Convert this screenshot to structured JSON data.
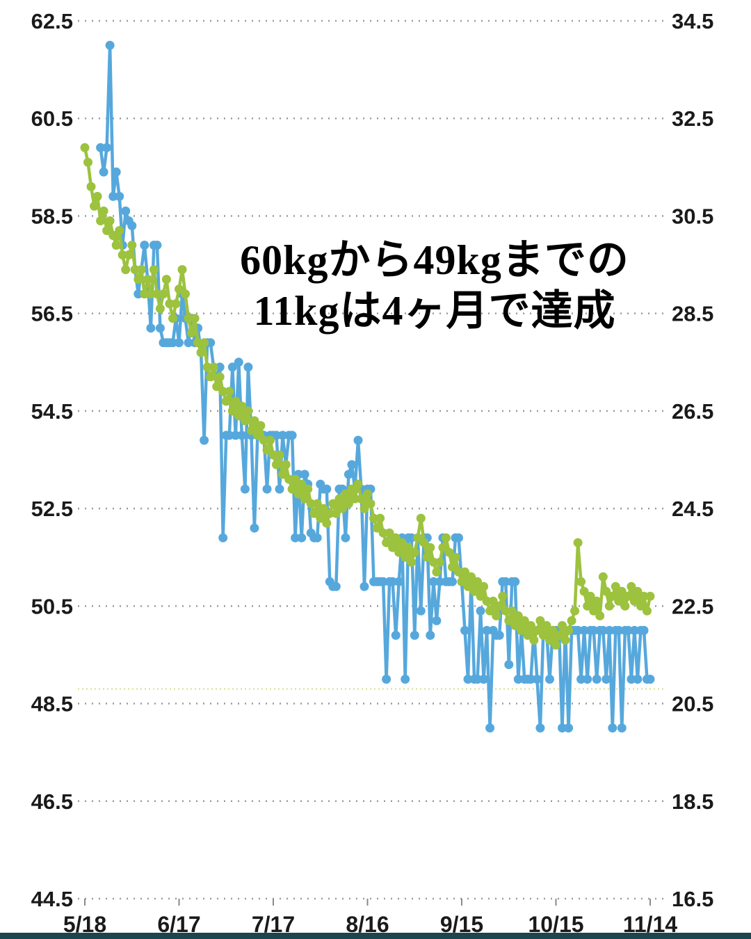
{
  "chart_data": {
    "type": "line",
    "title": "",
    "annotation": {
      "line1": "60kgから49kgまでの",
      "line2": "11kgは4ヶ月で達成"
    },
    "x_axis": {
      "tick_labels": [
        "5/18",
        "6/17",
        "7/17",
        "8/16",
        "9/15",
        "10/15",
        "11/14"
      ],
      "tick_days": [
        0,
        30,
        60,
        90,
        120,
        150,
        180
      ],
      "total_days": 180
    },
    "y_axis_left": {
      "min": 44.5,
      "max": 62.5,
      "tick_step": 2,
      "tick_labels": [
        "62.5",
        "60.5",
        "58.5",
        "56.5",
        "54.5",
        "52.5",
        "50.5",
        "48.5",
        "46.5",
        "44.5"
      ]
    },
    "y_axis_right": {
      "min": 16.5,
      "max": 34.5,
      "tick_step": 2,
      "tick_labels": [
        "34.5",
        "32.5",
        "30.5",
        "28.5",
        "26.5",
        "24.5",
        "22.5",
        "20.5",
        "18.5",
        "16.5"
      ]
    },
    "grid": {
      "color": "#9a9a9a",
      "dash": "2,8",
      "label_color": "#1a1a1a"
    },
    "goal_line": {
      "value_left_axis": 48.8,
      "color": "#e4e6b0"
    },
    "series": [
      {
        "name": "blue-weight-series",
        "axis": "left",
        "color": "#56a8dc",
        "start_day": 5,
        "values": [
          59.9,
          59.4,
          59.9,
          62.0,
          58.9,
          59.4,
          58.9,
          57.9,
          58.6,
          58.4,
          58.3,
          57.4,
          56.9,
          57.4,
          57.9,
          57.2,
          56.2,
          57.9,
          57.9,
          56.2,
          55.9,
          55.9,
          55.9,
          55.9,
          56.4,
          55.9,
          56.9,
          56.4,
          55.9,
          56.4,
          55.9,
          56.2,
          55.7,
          53.9,
          55.9,
          55.9,
          55.4,
          55.2,
          55.4,
          51.9,
          54.0,
          54.0,
          55.4,
          54.0,
          55.5,
          54.0,
          52.9,
          55.4,
          54.0,
          52.1,
          54.0,
          54.0,
          54.0,
          52.9,
          54.0,
          54.0,
          54.0,
          52.9,
          54.0,
          53.4,
          54.0,
          54.0,
          51.9,
          53.2,
          51.9,
          53.2,
          53.0,
          52.0,
          51.9,
          51.9,
          53.0,
          52.9,
          52.9,
          51.0,
          50.9,
          50.9,
          52.9,
          52.9,
          51.9,
          53.2,
          53.4,
          52.9,
          53.9,
          52.9,
          50.9,
          52.9,
          52.9,
          51.0,
          51.0,
          51.0,
          51.0,
          49.0,
          51.0,
          51.0,
          49.9,
          51.0,
          51.9,
          49.0,
          51.9,
          51.9,
          49.9,
          51.9,
          50.4,
          51.9,
          51.9,
          49.9,
          51.0,
          50.2,
          51.0,
          51.9,
          51.0,
          51.0,
          51.0,
          51.9,
          51.9,
          51.0,
          50.0,
          49.0,
          51.0,
          49.0,
          49.0,
          50.4,
          49.0,
          50.0,
          48.0,
          50.0,
          49.9,
          49.9,
          51.0,
          51.0,
          49.3,
          51.0,
          51.0,
          49.0,
          50.0,
          49.0,
          49.0,
          49.0,
          50.0,
          49.0,
          48.0,
          50.0,
          50.0,
          49.0,
          50.0,
          50.0,
          50.0,
          48.0,
          50.0,
          48.0,
          50.0,
          50.0,
          50.0,
          49.0,
          50.0,
          49.0,
          50.0,
          50.0,
          49.0,
          50.0,
          50.0,
          49.0,
          50.0,
          48.0,
          50.0,
          50.0,
          48.0,
          50.0,
          50.0,
          49.0,
          50.0,
          49.0,
          50.0,
          50.0,
          49.0,
          49.0
        ]
      },
      {
        "name": "green-bodyfat-series",
        "axis": "right",
        "color": "#9cc23e",
        "start_day": 0,
        "values": [
          31.9,
          31.6,
          31.1,
          30.7,
          30.9,
          30.4,
          30.6,
          30.2,
          30.4,
          30.1,
          29.9,
          30.2,
          29.7,
          29.4,
          29.7,
          29.9,
          29.4,
          29.2,
          29.4,
          28.9,
          29.2,
          28.9,
          29.4,
          28.9,
          28.6,
          28.9,
          29.2,
          28.7,
          28.4,
          28.7,
          29.0,
          29.4,
          28.9,
          28.4,
          28.1,
          28.4,
          27.9,
          27.7,
          27.9,
          27.4,
          27.2,
          27.4,
          27.0,
          27.2,
          26.9,
          26.7,
          26.9,
          26.5,
          26.7,
          26.4,
          26.6,
          26.3,
          26.5,
          26.1,
          26.3,
          26.0,
          26.2,
          25.9,
          25.7,
          25.9,
          25.6,
          25.4,
          25.6,
          25.2,
          25.4,
          25.1,
          24.9,
          25.1,
          24.8,
          25.0,
          24.7,
          24.9,
          24.6,
          24.4,
          24.6,
          24.3,
          24.5,
          24.2,
          24.4,
          24.6,
          24.4,
          24.7,
          24.5,
          24.8,
          24.6,
          24.9,
          24.7,
          25.0,
          24.7,
          24.5,
          24.8,
          24.6,
          24.3,
          24.1,
          24.3,
          24.0,
          23.8,
          24.0,
          23.7,
          23.9,
          23.6,
          23.8,
          23.5,
          23.7,
          23.4,
          23.6,
          23.9,
          24.3,
          23.8,
          23.5,
          23.7,
          23.4,
          23.2,
          23.4,
          23.7,
          23.9,
          23.6,
          23.3,
          23.5,
          23.2,
          23.0,
          23.2,
          22.9,
          23.1,
          22.8,
          23.0,
          22.7,
          22.9,
          22.6,
          22.4,
          22.6,
          22.3,
          22.5,
          22.7,
          22.4,
          22.2,
          22.4,
          22.1,
          22.3,
          22.0,
          22.2,
          21.9,
          22.1,
          21.8,
          22.0,
          22.2,
          21.9,
          22.1,
          21.8,
          22.0,
          21.7,
          21.9,
          22.1,
          21.8,
          22.0,
          22.2,
          22.4,
          23.8,
          23.0,
          22.8,
          22.5,
          22.7,
          22.4,
          22.6,
          22.3,
          23.1,
          22.8,
          22.5,
          22.7,
          22.9,
          22.6,
          22.8,
          22.5,
          22.7,
          22.9,
          22.6,
          22.8,
          22.5,
          22.7,
          22.4,
          22.7
        ]
      }
    ]
  },
  "footer": {
    "bar_color": "#1a4551"
  }
}
